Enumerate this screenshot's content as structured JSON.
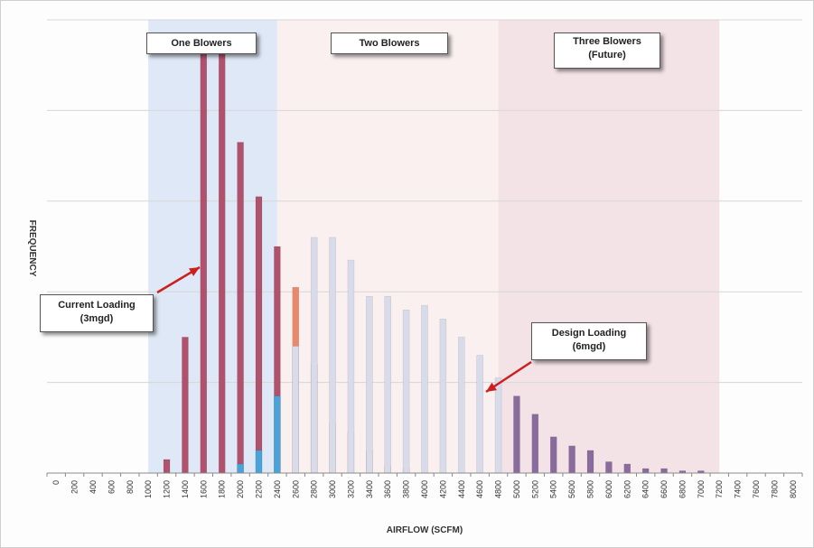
{
  "chart_data": {
    "type": "bar",
    "xlabel": "AIRFLOW (SCFM)",
    "ylabel": "FREQUENCY",
    "grid": true,
    "categories": [
      "0",
      "200",
      "400",
      "600",
      "800",
      "1000",
      "1200",
      "1400",
      "1600",
      "1800",
      "2000",
      "2200",
      "2400",
      "2600",
      "2800",
      "3000",
      "3200",
      "3400",
      "3600",
      "3800",
      "4000",
      "4200",
      "4400",
      "4600",
      "4800",
      "5000",
      "5200",
      "5400",
      "5600",
      "5800",
      "6000",
      "6200",
      "6400",
      "6600",
      "6800",
      "7000",
      "7200",
      "7400",
      "7600",
      "7800",
      "8000"
    ],
    "ylim": [
      0,
      10
    ],
    "series": [
      {
        "color": "#b0526e",
        "values": [
          0,
          0,
          0,
          0,
          0,
          0,
          0.3,
          3.0,
          9.3,
          9.6,
          7.3,
          6.1,
          5.0,
          0,
          0,
          0,
          0,
          0,
          0,
          0,
          0,
          0,
          0,
          0,
          0,
          0,
          0,
          0,
          0,
          0,
          0,
          0,
          0,
          0,
          0,
          0,
          0,
          0,
          0,
          0,
          0
        ]
      },
      {
        "color": "#4aa3d8",
        "values": [
          0,
          0,
          0,
          0,
          0,
          0,
          0,
          0,
          0,
          0,
          0.2,
          0.5,
          1.7,
          0,
          0,
          0,
          0,
          0,
          0,
          0,
          0,
          0,
          0,
          0,
          0,
          0,
          0,
          0,
          0,
          0,
          0,
          0,
          0,
          0,
          0,
          0,
          0,
          0,
          0,
          0,
          0
        ]
      },
      {
        "color": "#e8896c",
        "values": [
          0,
          0,
          0,
          0,
          0,
          0,
          0,
          0,
          0,
          0,
          0,
          0,
          0,
          4.1,
          2.4,
          1.1,
          0.9,
          0.5,
          0.15,
          0.1,
          0,
          0,
          0,
          0,
          0,
          0,
          0,
          0,
          0,
          0,
          0,
          0,
          0,
          0,
          0,
          0,
          0,
          0,
          0,
          0,
          0
        ]
      },
      {
        "color": "#d8dcea",
        "values": [
          0,
          0,
          0,
          0,
          0,
          0,
          0,
          0,
          0,
          0,
          0,
          0,
          0,
          2.8,
          5.2,
          5.2,
          4.7,
          3.9,
          3.9,
          3.6,
          3.7,
          3.4,
          3.0,
          2.6,
          2.1,
          0,
          0,
          0,
          0,
          0,
          0,
          0,
          0,
          0,
          0,
          0,
          0,
          0,
          0,
          0,
          0
        ]
      },
      {
        "color": "#8a6b9e",
        "values": [
          0,
          0,
          0,
          0,
          0,
          0,
          0,
          0,
          0,
          0,
          0,
          0,
          0,
          0,
          0,
          0,
          0,
          0,
          0,
          0,
          0,
          0,
          0,
          0,
          0,
          1.7,
          1.3,
          0.8,
          0.6,
          0.5,
          0.25,
          0.2,
          0.1,
          0.1,
          0.05,
          0.05,
          0,
          0,
          0,
          0,
          0
        ]
      }
    ],
    "regions": [
      {
        "label": "One Blowers",
        "from": "1000",
        "to": "2400",
        "color": "#dfe8f6"
      },
      {
        "label": "Two Blowers",
        "from": "2400",
        "to": "4800",
        "color": "#fbf0f0"
      },
      {
        "label": "Three Blowers (Future)",
        "from": "4800",
        "to": "7200",
        "color": "#f4e3e6"
      }
    ]
  },
  "region_labels": {
    "one": "One Blowers",
    "two": "Two Blowers",
    "three_line1": "Three Blowers",
    "three_line2": "(Future)"
  },
  "annotations": {
    "current_line1": "Current Loading",
    "current_line2": "(3mgd)",
    "design_line1": "Design Loading",
    "design_line2": "(6mgd)"
  },
  "colors": {
    "arrow": "#cc1f1f",
    "grid": "#d6d6d6",
    "axis": "#8a8a8a"
  }
}
